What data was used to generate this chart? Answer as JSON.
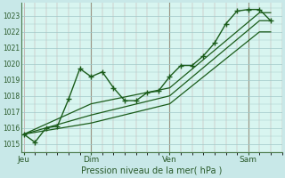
{
  "bg_color": "#c8e8e8",
  "plot_bg_color": "#d8f5f0",
  "grid_color_v": "#c0a0a0",
  "grid_color_h": "#a0c8c8",
  "line_color": "#1a5c1a",
  "xlabel": "Pression niveau de la mer( hPa )",
  "ylim": [
    1014.5,
    1023.8
  ],
  "yticks": [
    1015,
    1016,
    1017,
    1018,
    1019,
    1020,
    1021,
    1022,
    1023
  ],
  "day_positions": [
    0.0,
    3.0,
    6.5,
    10.0
  ],
  "day_labels": [
    "Jeu",
    "Dim",
    "Ven",
    "Sam"
  ],
  "xmax": 11.5,
  "xmin": -0.1,
  "series1_x": [
    0.0,
    0.5,
    1.0,
    1.5,
    2.0,
    2.5,
    3.0,
    3.5,
    4.0,
    4.5,
    5.0,
    5.5,
    6.0,
    6.5,
    7.0,
    7.5,
    8.0,
    8.5,
    9.0,
    9.5,
    10.0,
    10.5,
    11.0
  ],
  "series1_y": [
    1015.6,
    1015.1,
    1016.0,
    1016.1,
    1017.8,
    1019.7,
    1019.2,
    1019.5,
    1018.5,
    1017.7,
    1017.7,
    1018.2,
    1018.3,
    1019.2,
    1019.9,
    1019.9,
    1020.5,
    1021.3,
    1022.5,
    1023.3,
    1023.4,
    1023.4,
    1022.7
  ],
  "series2_x": [
    0.0,
    3.0,
    6.5,
    10.5,
    11.0
  ],
  "series2_y": [
    1015.6,
    1016.8,
    1018.0,
    1022.7,
    1022.7
  ],
  "series3_x": [
    0.0,
    3.0,
    6.5,
    10.5,
    11.0
  ],
  "series3_y": [
    1015.6,
    1017.5,
    1018.5,
    1023.2,
    1023.2
  ],
  "series4_x": [
    0.0,
    3.0,
    6.5,
    10.5,
    11.0
  ],
  "series4_y": [
    1015.6,
    1016.3,
    1017.5,
    1022.0,
    1022.0
  ]
}
